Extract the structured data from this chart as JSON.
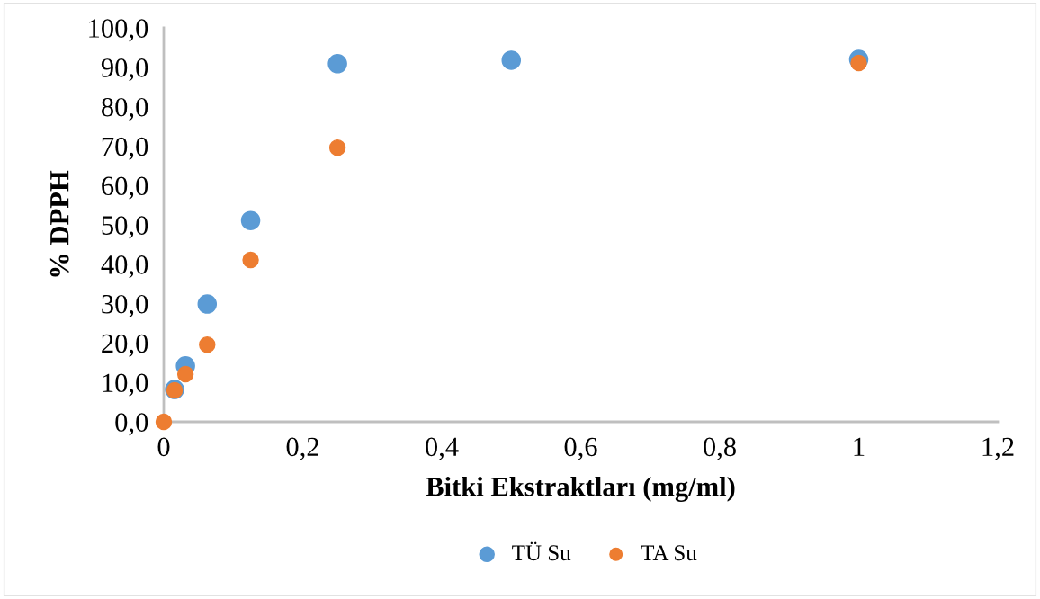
{
  "chart_data": {
    "type": "scatter",
    "xlabel": "Bitki Ekstraktları (mg/ml)",
    "ylabel": "% DPPH",
    "x": [
      0,
      0.0156,
      0.03125,
      0.0625,
      0.125,
      0.25,
      0.5,
      1
    ],
    "series": [
      {
        "name": "TÜ Su",
        "color": "#5b9bd5",
        "values": [
          null,
          8.2,
          14.2,
          29.9,
          51.1,
          90.9,
          91.8,
          92.0
        ]
      },
      {
        "name": "TA Su",
        "color": "#ed7d31",
        "values": [
          0,
          8.0,
          12.1,
          19.6,
          41.1,
          69.6,
          null,
          91.1
        ]
      }
    ],
    "xlim": [
      0,
      1.2
    ],
    "xticks": [
      0,
      {
        "value": 0.2,
        "label": "0,2"
      },
      {
        "value": 0.4,
        "label": "0,4"
      },
      {
        "value": 0.6,
        "label": "0,6"
      },
      {
        "value": 0.8,
        "label": "0,8"
      },
      1,
      {
        "value": 1.2,
        "label": "1,2"
      }
    ],
    "ylim": [
      0,
      100
    ],
    "yticks": [
      {
        "value": 0,
        "label": "0,0"
      },
      {
        "value": 10,
        "label": "10,0"
      },
      {
        "value": 20,
        "label": "20,0"
      },
      {
        "value": 30,
        "label": "30,0"
      },
      {
        "value": 40,
        "label": "40,0"
      },
      {
        "value": 50,
        "label": "50,0"
      },
      {
        "value": 60,
        "label": "60,0"
      },
      {
        "value": 70,
        "label": "70,0"
      },
      {
        "value": 80,
        "label": "80,0"
      },
      {
        "value": 90,
        "label": "90,0"
      },
      {
        "value": 100,
        "label": "100,0"
      }
    ],
    "grid": false,
    "legend": "bottom",
    "marker": "circle"
  }
}
